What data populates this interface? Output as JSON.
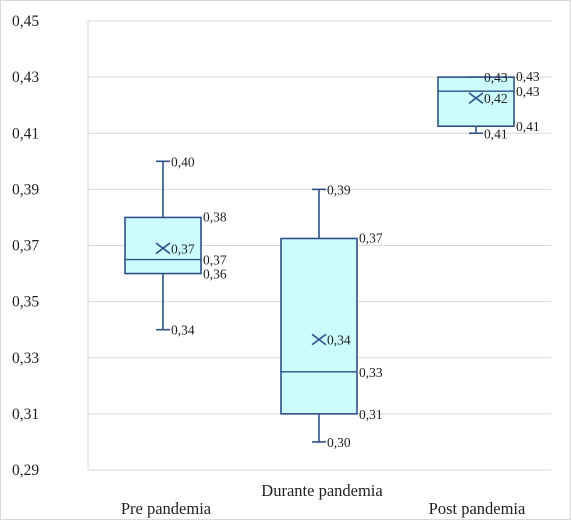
{
  "chart_data": {
    "type": "box",
    "categories": [
      "Pre pandemia",
      "Durante pandemia",
      "Post pandemia"
    ],
    "ylim": [
      0.29,
      0.45
    ],
    "yticks": [
      0.29,
      0.31,
      0.33,
      0.35,
      0.37,
      0.39,
      0.41,
      0.43,
      0.45
    ],
    "ytick_labels": [
      "0,29",
      "0,31",
      "0,33",
      "0,35",
      "0,37",
      "0,39",
      "0,41",
      "0,43",
      "0,45"
    ],
    "grid": true,
    "boxes": [
      {
        "category": "Pre pandemia",
        "min": 0.34,
        "q1": 0.36,
        "median": 0.365,
        "mean": 0.369,
        "q3": 0.38,
        "max": 0.4,
        "labels": {
          "max": "0,40",
          "q3": "0,38",
          "mean": "0,37",
          "median": "0,37",
          "q1": "0,36",
          "min": "0,34"
        }
      },
      {
        "category": "Durante pandemia",
        "min": 0.3,
        "q1": 0.31,
        "median": 0.325,
        "mean": 0.3365,
        "q3": 0.3725,
        "max": 0.39,
        "labels": {
          "max": "0,39",
          "q3": "0,37",
          "mean": "0,34",
          "median": "0,33",
          "q1": "0,31",
          "min": "0,30"
        }
      },
      {
        "category": "Post pandemia",
        "min": 0.41,
        "q1": 0.4125,
        "median": 0.425,
        "mean": 0.4225,
        "q3": 0.43,
        "max": 0.43,
        "labels": {
          "max": "0,43",
          "q3": "0,43",
          "mean": "0,42",
          "median": "0,43",
          "q1": "0,41",
          "min": "0,41"
        }
      }
    ],
    "colors": {
      "box_fill": "#ccfcfd",
      "box_stroke": "#2f4f8a",
      "grid": "#d9d9d9",
      "border": "#d9d9d9"
    }
  }
}
